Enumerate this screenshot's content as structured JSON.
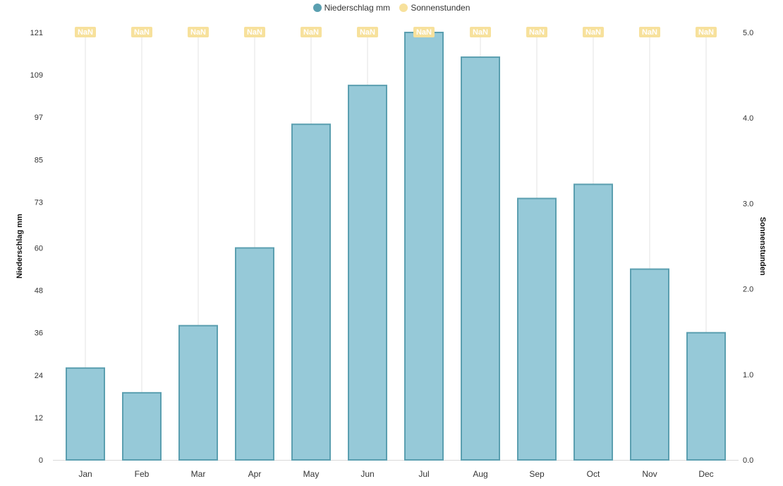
{
  "legend": {
    "series1_label": "Niederschlag mm",
    "series2_label": "Sonnenstunden"
  },
  "colors": {
    "bar_fill": "#96c9d8",
    "bar_stroke": "#5b9fb0",
    "rain_dot": "#5a9fb0",
    "sun_dot": "#f7e19c",
    "badge_fill": "#f7e19c",
    "grid": "#e3e3e3",
    "baseline": "#d9d9d9"
  },
  "chart_data": {
    "type": "bar",
    "categories": [
      "Jan",
      "Feb",
      "Mar",
      "Apr",
      "May",
      "Jun",
      "Jul",
      "Aug",
      "Sep",
      "Oct",
      "Nov",
      "Dec"
    ],
    "series": [
      {
        "name": "Niederschlag mm",
        "type": "bar",
        "axis": "left",
        "values": [
          26,
          19,
          38,
          60,
          95,
          106,
          121,
          114,
          74,
          78,
          54,
          36
        ]
      },
      {
        "name": "Sonnenstunden",
        "type": "line",
        "axis": "right",
        "values": [
          null,
          null,
          null,
          null,
          null,
          null,
          null,
          null,
          null,
          null,
          null,
          null
        ],
        "data_labels": [
          "NaN",
          "NaN",
          "NaN",
          "NaN",
          "NaN",
          "NaN",
          "NaN",
          "NaN",
          "NaN",
          "NaN",
          "NaN",
          "NaN"
        ]
      }
    ],
    "ylabel": "Niederschlag mm",
    "y2label": "Sonnenstunden",
    "ylim": [
      0,
      121
    ],
    "y2lim": [
      0,
      5
    ],
    "yticks": [
      "0",
      "12",
      "24",
      "36",
      "48",
      "60",
      "73",
      "85",
      "97",
      "109",
      "121"
    ],
    "y2ticks": [
      "0.0",
      "1.0",
      "2.0",
      "3.0",
      "4.0",
      "5.0"
    ],
    "grid": "vertical",
    "legend_position": "top-center"
  }
}
